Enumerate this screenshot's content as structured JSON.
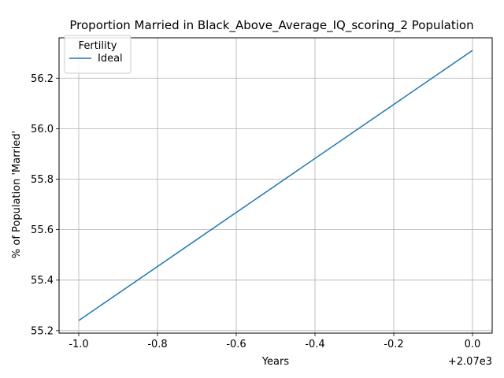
{
  "chart_data": {
    "type": "line",
    "title": "Proportion Married in Black_Above_Average_IQ_scoring_2 Population",
    "xlabel": "Years",
    "ylabel": "% of Population 'Married'",
    "x_offset_label": "+2.07e3",
    "x_ticks": [
      "-1.0",
      "-0.8",
      "-0.6",
      "-0.4",
      "-0.2",
      "0.0"
    ],
    "y_ticks": [
      "55.2",
      "55.4",
      "55.6",
      "55.8",
      "56.0",
      "56.2"
    ],
    "xlim": [
      -1.05,
      0.05
    ],
    "ylim": [
      55.19,
      56.36
    ],
    "grid": true,
    "legend": {
      "title": "Fertility",
      "placement": "top-left"
    },
    "series": [
      {
        "name": "Ideal",
        "color": "#1f77b4",
        "x": [
          -1.0,
          0.0
        ],
        "y": [
          55.24,
          56.31
        ]
      }
    ]
  }
}
